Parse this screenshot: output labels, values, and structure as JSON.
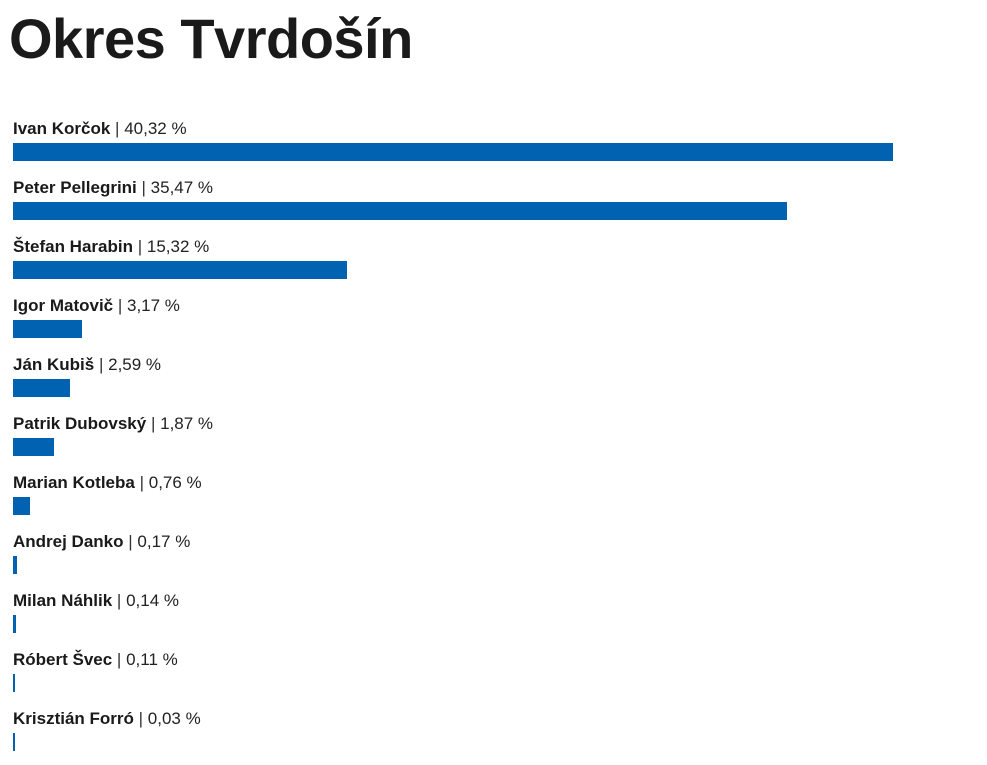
{
  "title": "Okres Tvrdošín",
  "separator": " | ",
  "colors": {
    "bar": "#0062b0"
  },
  "candidates": [
    {
      "name": "Ivan Korčok",
      "value_label": "40,32 %"
    },
    {
      "name": "Peter Pellegrini",
      "value_label": "35,47 %"
    },
    {
      "name": "Štefan Harabin",
      "value_label": "15,32 %"
    },
    {
      "name": "Igor Matovič",
      "value_label": "3,17 %"
    },
    {
      "name": "Ján Kubiš",
      "value_label": "2,59 %"
    },
    {
      "name": "Patrik Dubovský",
      "value_label": "1,87 %"
    },
    {
      "name": "Marian Kotleba",
      "value_label": "0,76 %"
    },
    {
      "name": "Andrej Danko",
      "value_label": "0,17 %"
    },
    {
      "name": "Milan Náhlik",
      "value_label": "0,14 %"
    },
    {
      "name": "Róbert Švec",
      "value_label": "0,11 %"
    },
    {
      "name": "Krisztián Forró",
      "value_label": "0,03 %"
    }
  ],
  "chart_data": {
    "type": "bar",
    "orientation": "horizontal",
    "title": "Okres Tvrdošín",
    "categories": [
      "Ivan Korčok",
      "Peter Pellegrini",
      "Štefan Harabin",
      "Igor Matovič",
      "Ján Kubiš",
      "Patrik Dubovský",
      "Marian Kotleba",
      "Andrej Danko",
      "Milan Náhlik",
      "Róbert Švec",
      "Krisztián Forró"
    ],
    "values": [
      40.32,
      35.47,
      15.32,
      3.17,
      2.59,
      1.87,
      0.76,
      0.17,
      0.14,
      0.11,
      0.03
    ],
    "unit": "%",
    "grid": false,
    "legend": "none"
  }
}
